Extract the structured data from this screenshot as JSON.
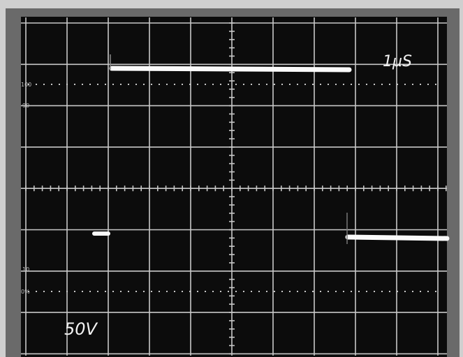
{
  "screen": {
    "timebase": "1µS",
    "volts_per_div": "50V",
    "graticule_labels": [
      "100",
      "90",
      "10",
      "0%"
    ]
  }
}
